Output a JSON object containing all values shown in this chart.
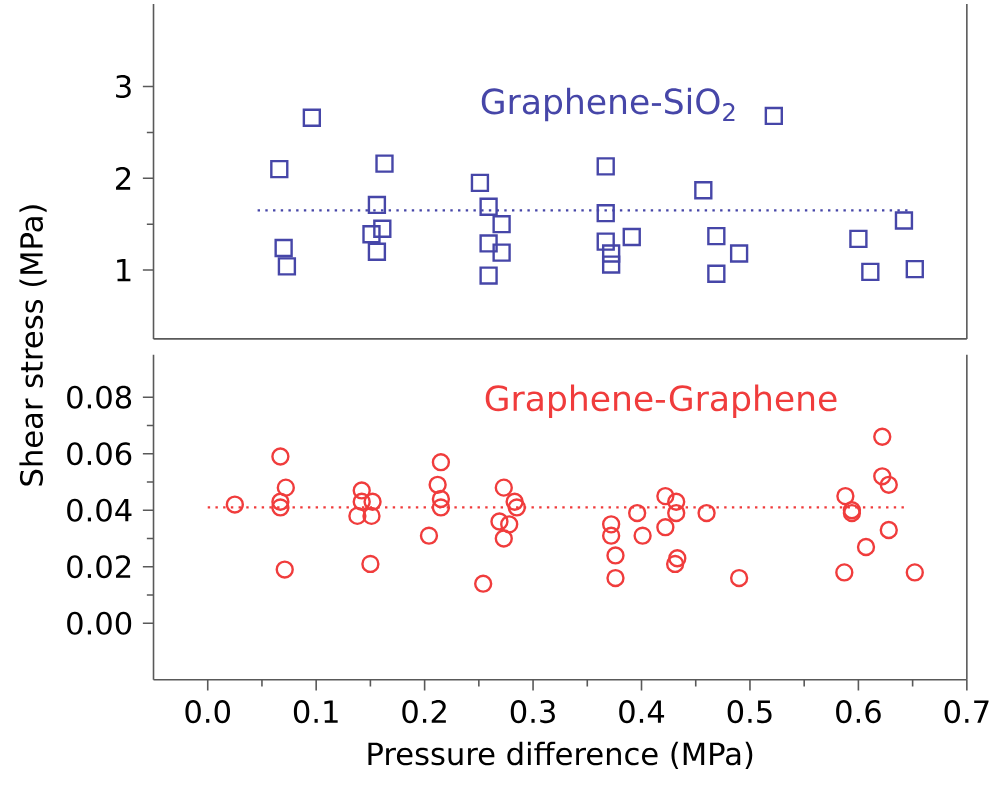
{
  "chart_data": [
    {
      "type": "scatter",
      "tick_labels": "y",
      "xlim": [
        -0.05,
        0.7
      ],
      "ylim": [
        0.25,
        3.9
      ],
      "yticks": [
        1,
        2,
        3
      ],
      "series": [
        {
          "name": "Graphene-SiO$_{2}$",
          "marker": "square",
          "color": "#4646a8",
          "x": [
            0.066,
            0.096,
            0.07,
            0.073,
            0.163,
            0.156,
            0.151,
            0.161,
            0.156,
            0.251,
            0.259,
            0.271,
            0.259,
            0.271,
            0.259,
            0.367,
            0.367,
            0.367,
            0.372,
            0.372,
            0.391,
            0.457,
            0.469,
            0.49,
            0.469,
            0.522,
            0.6,
            0.611,
            0.642,
            0.652
          ],
          "values": [
            2.1,
            2.66,
            1.24,
            1.04,
            2.16,
            1.71,
            1.39,
            1.45,
            1.2,
            1.95,
            1.69,
            1.5,
            1.29,
            1.19,
            0.94,
            2.13,
            1.62,
            1.31,
            1.18,
            1.06,
            1.36,
            1.87,
            1.37,
            1.18,
            0.96,
            2.68,
            1.34,
            0.98,
            1.54,
            1.01
          ]
        },
        {
          "type": "line",
          "marker": "none",
          "line_style": "dotted",
          "color": "#4646a8",
          "x": [
            0.046,
            0.646
          ],
          "values": [
            1.65,
            1.65
          ]
        }
      ]
    },
    {
      "type": "scatter",
      "xlabel": "Pressure difference (MPa)",
      "ylabel": "Shear stress (MPa)",
      "xlim": [
        -0.05,
        0.7
      ],
      "ylim": [
        -0.02,
        0.095
      ],
      "xticks": [
        {
          "value": 0,
          "label": "0.0"
        },
        {
          "value": 0.1,
          "label": "0.1"
        },
        {
          "value": 0.2,
          "label": "0.2"
        },
        {
          "value": 0.3,
          "label": "0.3"
        },
        {
          "value": 0.4,
          "label": "0.4"
        },
        {
          "value": 0.5,
          "label": "0.5"
        },
        {
          "value": 0.6,
          "label": "0.6"
        },
        {
          "value": 0.7,
          "label": "0.7"
        }
      ],
      "yticks": [
        {
          "value": 0,
          "label": "0.00"
        },
        {
          "value": 0.02,
          "label": "0.02"
        },
        {
          "value": 0.04,
          "label": "0.04"
        },
        {
          "value": 0.06,
          "label": "0.06"
        },
        {
          "value": 0.08,
          "label": "0.08"
        }
      ],
      "series": [
        {
          "name": "Graphene-Graphene",
          "marker": "circle",
          "color": "#f03c3c",
          "x": [
            0.025,
            0.067,
            0.072,
            0.067,
            0.067,
            0.071,
            0.142,
            0.142,
            0.152,
            0.138,
            0.151,
            0.15,
            0.215,
            0.212,
            0.215,
            0.215,
            0.204,
            0.254,
            0.273,
            0.283,
            0.285,
            0.269,
            0.278,
            0.273,
            0.372,
            0.372,
            0.376,
            0.376,
            0.396,
            0.401,
            0.422,
            0.432,
            0.432,
            0.422,
            0.433,
            0.431,
            0.46,
            0.49,
            0.588,
            0.594,
            0.594,
            0.587,
            0.607,
            0.622,
            0.622,
            0.628,
            0.628,
            0.652
          ],
          "values": [
            0.042,
            0.059,
            0.048,
            0.043,
            0.041,
            0.019,
            0.047,
            0.043,
            0.043,
            0.038,
            0.038,
            0.021,
            0.057,
            0.049,
            0.044,
            0.041,
            0.031,
            0.014,
            0.048,
            0.043,
            0.041,
            0.036,
            0.035,
            0.03,
            0.035,
            0.031,
            0.024,
            0.016,
            0.039,
            0.031,
            0.045,
            0.043,
            0.039,
            0.034,
            0.023,
            0.021,
            0.039,
            0.016,
            0.045,
            0.04,
            0.039,
            0.018,
            0.027,
            0.066,
            0.052,
            0.049,
            0.033,
            0.018
          ]
        },
        {
          "type": "line",
          "marker": "none",
          "line_style": "dotted",
          "color": "#f03c3c",
          "x": [
            0.0,
            0.646
          ],
          "values": [
            0.041,
            0.041
          ]
        }
      ]
    }
  ]
}
